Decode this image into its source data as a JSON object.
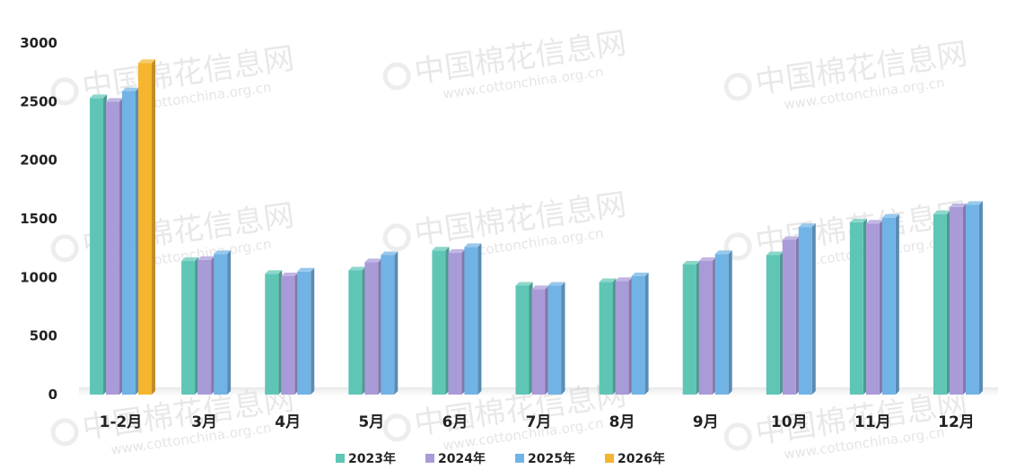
{
  "watermark": {
    "brand": "中国棉花信息网",
    "url": "www.cottonchina.org.cn"
  },
  "chart_data": {
    "type": "bar",
    "title": "",
    "xlabel": "",
    "ylabel": "",
    "ylim": [
      0,
      3000
    ],
    "yticks": [
      0,
      500,
      1000,
      1500,
      2000,
      2500,
      3000
    ],
    "grid": false,
    "legend_position": "bottom",
    "categories": [
      "1-2月",
      "3月",
      "4月",
      "5月",
      "6月",
      "7月",
      "8月",
      "9月",
      "10月",
      "11月",
      "12月"
    ],
    "series": [
      {
        "name": "2023年",
        "color": "#5fc6b6",
        "values": [
          2530,
          1140,
          1030,
          1060,
          1230,
          930,
          960,
          1110,
          1190,
          1470,
          1540
        ]
      },
      {
        "name": "2024年",
        "color": "#a99ad8",
        "values": [
          2500,
          1150,
          1010,
          1130,
          1210,
          900,
          970,
          1140,
          1320,
          1460,
          1600
        ]
      },
      {
        "name": "2025年",
        "color": "#72b3e6",
        "values": [
          2590,
          1200,
          1050,
          1190,
          1260,
          930,
          1010,
          1200,
          1430,
          1510,
          1620
        ]
      },
      {
        "name": "2026年",
        "color": "#f5b52e",
        "values": [
          2830,
          null,
          null,
          null,
          null,
          null,
          null,
          null,
          null,
          null,
          null
        ]
      }
    ]
  }
}
